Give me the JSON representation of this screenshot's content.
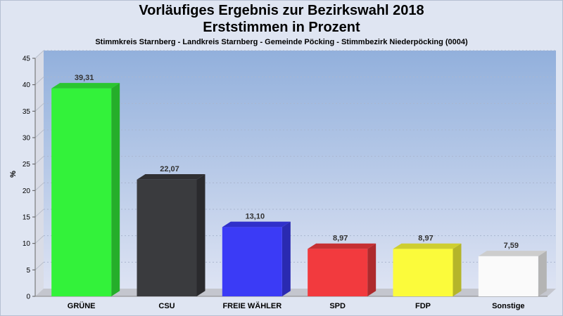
{
  "chart_data": {
    "type": "bar",
    "title": "Vorläufiges Ergebnis zur Bezirkswahl 2018",
    "title2": "Erststimmen in Prozent",
    "subtitle": "Stimmkreis Starnberg - Landkreis Starnberg - Gemeinde Pöcking - Stimmbezirk Niederpöcking (0004)",
    "ylabel": "%",
    "xlabel": "",
    "ylim": [
      0,
      45
    ],
    "yticks": [
      0,
      5,
      10,
      15,
      20,
      25,
      30,
      35,
      40,
      45
    ],
    "grid": true,
    "categories": [
      "GRÜNE",
      "CSU",
      "FREIE WÄHLER",
      "SPD",
      "FDP",
      "Sonstige"
    ],
    "values": [
      39.31,
      22.07,
      13.1,
      8.97,
      8.97,
      7.59
    ],
    "value_labels": [
      "39,31",
      "22,07",
      "13,10",
      "8,97",
      "8,97",
      "7,59"
    ],
    "colors": [
      "#33f23a",
      "#3a3b3e",
      "#3b3bf6",
      "#f23a3e",
      "#fbfb3b",
      "#fafafa"
    ],
    "background_gradient": [
      "#92b0dc",
      "#dde3f3"
    ]
  }
}
